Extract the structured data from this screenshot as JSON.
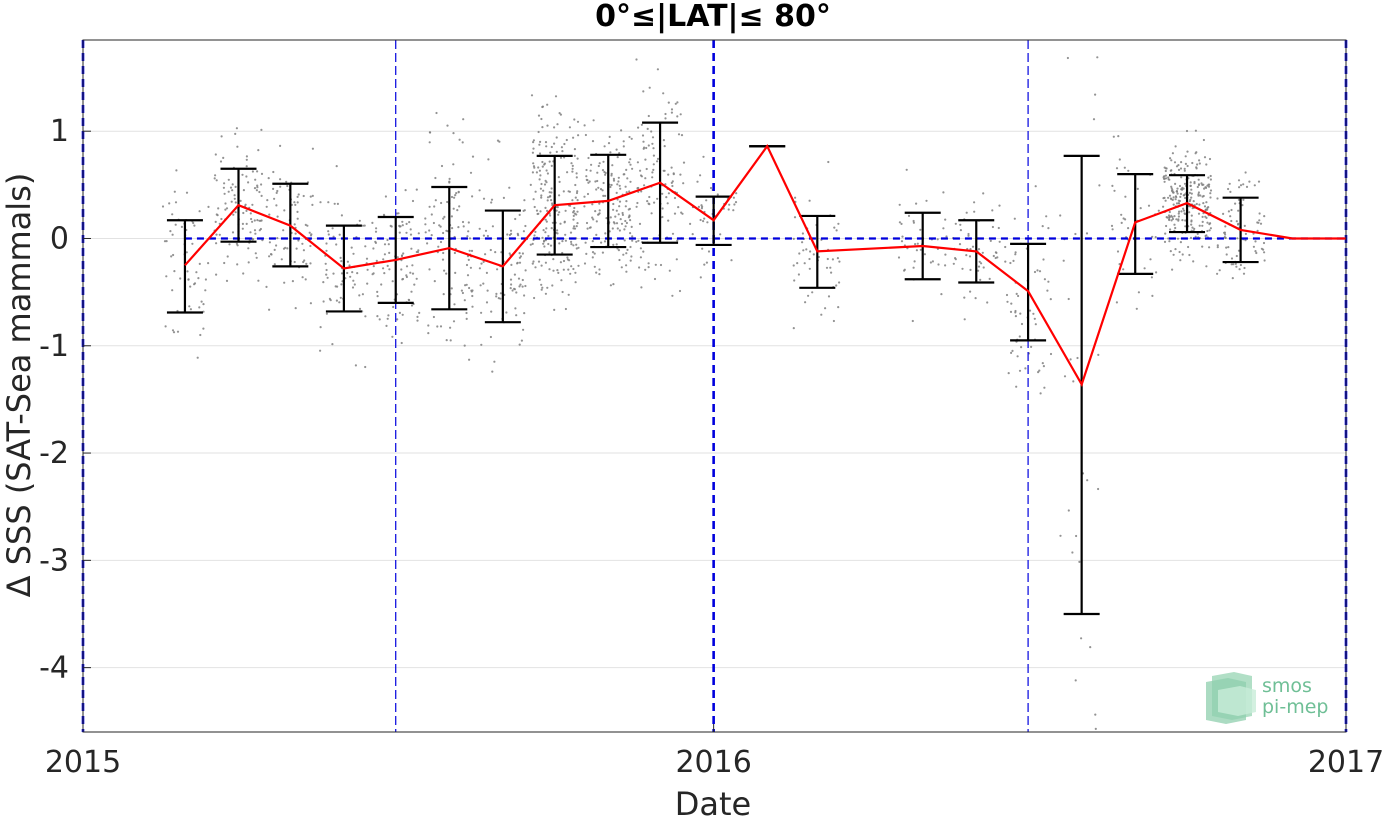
{
  "chart_data": {
    "type": "scatter",
    "title": "0°≤|LAT|≤ 80°",
    "xlabel": "Date",
    "ylabel": "Δ SSS (SAT-Sea mammals)",
    "xlim": [
      "2015-01-01",
      "2017-01-01"
    ],
    "ylim": [
      -4.6,
      1.85
    ],
    "x_ticks": [
      "2015",
      "2016",
      "2017"
    ],
    "y_ticks": [
      1,
      0,
      -1,
      -2,
      -3,
      -4
    ],
    "grid": true,
    "reference_line_y": 0,
    "vertical_reference_dates": [
      "2015-01-01",
      "2015-07-01",
      "2016-01-01",
      "2016-07-01",
      "2017-01-01"
    ],
    "colors": {
      "mean_line": "#ff0000",
      "error_bars": "#000000",
      "scatter": "#808080",
      "reference": "#0000dd",
      "logo": "#6fbf96"
    },
    "logo_text": [
      "smos",
      "pi-mep"
    ],
    "series": [
      {
        "type": "errorbar_line",
        "x": [
          "2015-03-01",
          "2015-04-01",
          "2015-05-01",
          "2015-06-01",
          "2015-07-01",
          "2015-08-01",
          "2015-09-01",
          "2015-10-01",
          "2015-11-01",
          "2015-12-01",
          "2016-01-01",
          "2016-02-01",
          "2016-03-01",
          "2016-05-01",
          "2016-06-01",
          "2016-07-01",
          "2016-08-01",
          "2016-09-01",
          "2016-10-01",
          "2016-11-01",
          "2016-12-01",
          "2017-01-01"
        ],
        "mean": [
          -0.25,
          0.31,
          0.12,
          -0.28,
          -0.2,
          -0.09,
          -0.26,
          0.31,
          0.35,
          0.52,
          0.17,
          0.86,
          -0.12,
          -0.07,
          -0.12,
          -0.49,
          -1.36,
          0.15,
          0.33,
          0.08,
          0.0,
          0.0
        ],
        "upper": [
          0.17,
          0.65,
          0.51,
          0.12,
          0.2,
          0.48,
          0.26,
          0.77,
          0.78,
          1.08,
          0.39,
          0.86,
          0.21,
          0.24,
          0.17,
          -0.05,
          0.77,
          0.6,
          0.59,
          0.38,
          null,
          null
        ],
        "lower": [
          -0.69,
          -0.03,
          -0.26,
          -0.68,
          -0.6,
          -0.66,
          -0.78,
          -0.15,
          -0.08,
          -0.04,
          -0.06,
          0.86,
          -0.46,
          -0.38,
          -0.41,
          -0.95,
          -3.5,
          -0.33,
          0.06,
          -0.22,
          null,
          null
        ]
      }
    ]
  }
}
